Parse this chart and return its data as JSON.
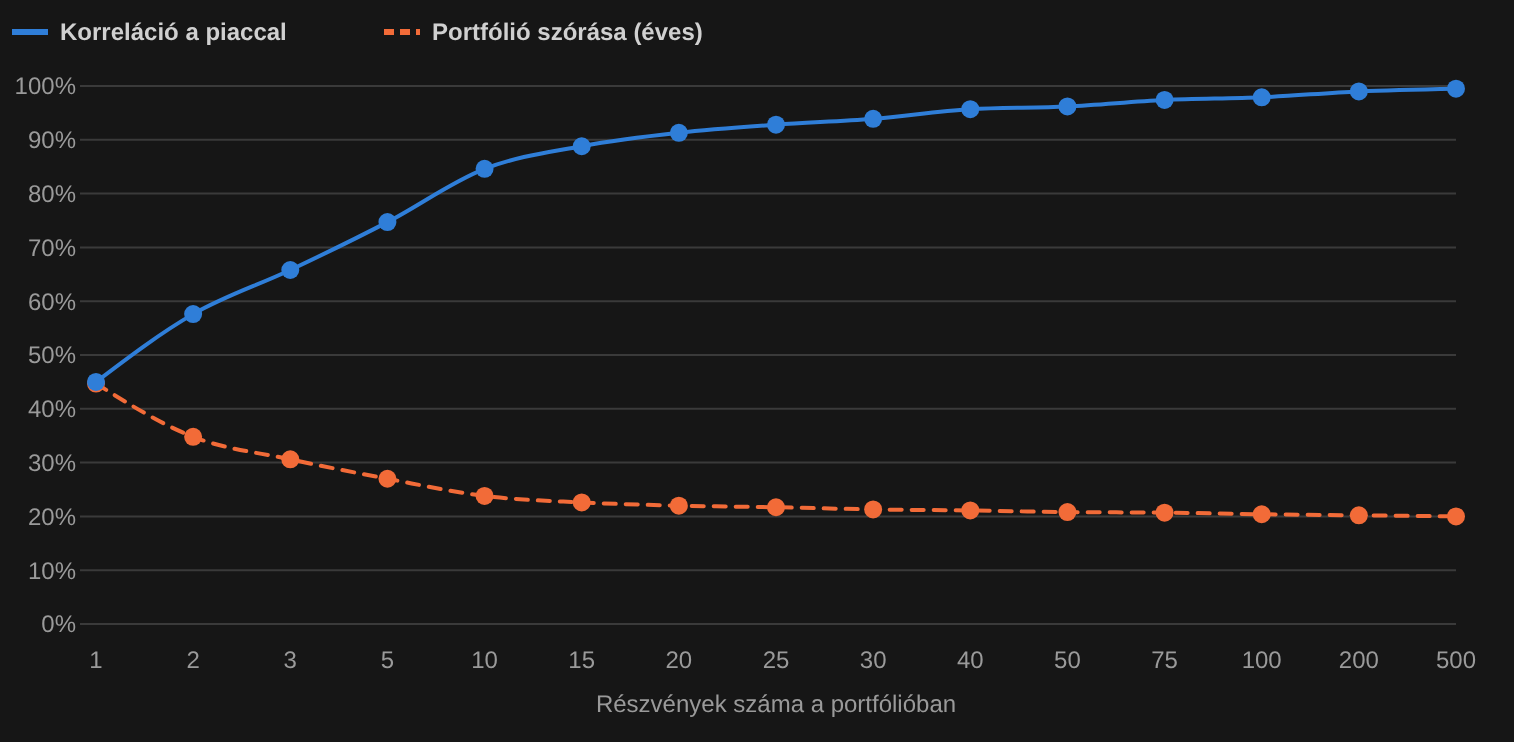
{
  "chart_data": {
    "type": "line",
    "xlabel": "Részvények száma a portfólióban",
    "categories": [
      "1",
      "2",
      "3",
      "5",
      "10",
      "15",
      "20",
      "25",
      "30",
      "40",
      "50",
      "75",
      "100",
      "200",
      "500"
    ],
    "series": [
      {
        "name": "Korreláció a piaccal",
        "color": "#2f7ed8",
        "line_style": "solid",
        "values": [
          45,
          57.6,
          65.8,
          74.7,
          84.6,
          88.8,
          91.3,
          92.8,
          93.9,
          95.7,
          96.2,
          97.4,
          97.9,
          99.0,
          99.5
        ]
      },
      {
        "name": "Portfólió szórása (éves)",
        "color": "#f26b38",
        "line_style": "dashed",
        "values": [
          44.7,
          34.8,
          30.6,
          27.0,
          23.8,
          22.6,
          22.0,
          21.7,
          21.3,
          21.1,
          20.8,
          20.7,
          20.4,
          20.2,
          20.0
        ]
      }
    ],
    "ylim": [
      0,
      100
    ],
    "yticks": [
      {
        "value": 0,
        "label": "0%"
      },
      {
        "value": 10,
        "label": "10%"
      },
      {
        "value": 20,
        "label": "20%"
      },
      {
        "value": 30,
        "label": "30%"
      },
      {
        "value": 40,
        "label": "40%"
      },
      {
        "value": 50,
        "label": "50%"
      },
      {
        "value": 60,
        "label": "60%"
      },
      {
        "value": 70,
        "label": "70%"
      },
      {
        "value": 80,
        "label": "80%"
      },
      {
        "value": 90,
        "label": "90%"
      },
      {
        "value": 100,
        "label": "100%"
      }
    ],
    "grid": "y",
    "legend": "top left",
    "marker": "circle"
  }
}
